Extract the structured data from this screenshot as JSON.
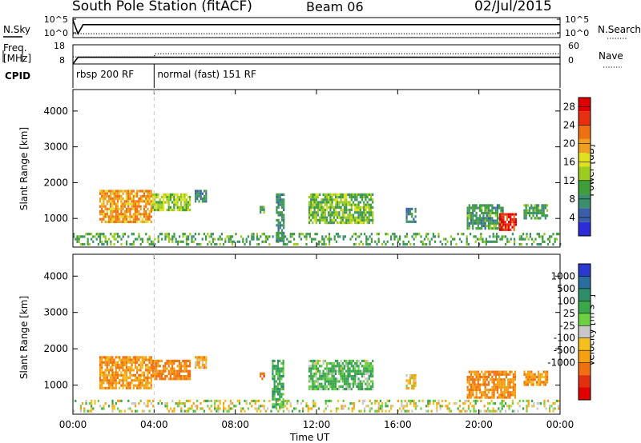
{
  "header": {
    "station": "South Pole Station (fitACF)",
    "beam": "Beam 06",
    "date": "02/Jul/2015"
  },
  "chart_data": [
    {
      "type": "line",
      "panel": "noise",
      "left_label": "N.Sky",
      "right_label": "N.Search",
      "left_ticks": [
        "10^5",
        "10^0"
      ],
      "right_ticks": [
        "10^5",
        "10^0"
      ],
      "series": [
        {
          "name": "N.Sky",
          "style": "solid",
          "x": [
            0.0,
            0.25,
            0.5,
            1,
            2,
            3,
            4,
            5,
            6,
            8,
            10,
            12,
            14,
            16,
            18,
            20,
            22,
            24
          ],
          "y": [
            100000,
            3,
            3000,
            3000,
            3000,
            3000,
            3000,
            3000,
            3000,
            3000,
            3000,
            3000,
            3000,
            3000,
            3000,
            3000,
            3000,
            3000
          ]
        },
        {
          "name": "N.Search",
          "style": "dotted",
          "x": [
            0,
            4,
            8,
            12,
            16,
            20,
            24
          ],
          "y": [
            3,
            3,
            3,
            3,
            3,
            3,
            3
          ]
        }
      ],
      "xlim": [
        0,
        24
      ]
    },
    {
      "type": "line",
      "panel": "frequency",
      "left_label": "Freq. [MHz]",
      "right_label": "Nave",
      "left_ticks": [
        "18",
        "8"
      ],
      "right_ticks": [
        "60",
        "0"
      ],
      "series": [
        {
          "name": "Freq",
          "style": "solid",
          "x": [
            0,
            0.25,
            1,
            4,
            8,
            12,
            16,
            20,
            24
          ],
          "y": [
            8,
            11.5,
            11.5,
            11.5,
            11.5,
            11.5,
            11.5,
            11.5,
            11.5
          ]
        },
        {
          "name": "Nave",
          "style": "dotted",
          "x": [
            0,
            4,
            4.05,
            8,
            12,
            16,
            20,
            24
          ],
          "y": [
            22,
            22,
            32,
            32,
            32,
            32,
            32,
            32
          ]
        }
      ],
      "ylim_left": [
        8,
        18
      ],
      "ylim_right": [
        0,
        60
      ],
      "xlim": [
        0,
        24
      ]
    },
    {
      "type": "table",
      "panel": "cpid",
      "label": "CPID",
      "segments": [
        {
          "start": 0,
          "end": 4,
          "text": "rbsp 200 RF"
        },
        {
          "start": 4,
          "end": 24,
          "text": "normal (fast) 151 RF"
        }
      ]
    },
    {
      "type": "heatmap",
      "panel": "power",
      "ylabel": "Slant Range [km]",
      "yticks": [
        1000,
        2000,
        3000,
        4000
      ],
      "ylim": [
        200,
        4600
      ],
      "xlim": [
        0,
        24
      ],
      "colorbar": {
        "label": "Power [dB]",
        "ticks": [
          "4",
          "8",
          "12",
          "16",
          "20",
          "24",
          "28"
        ],
        "colors": [
          "#2c2cd8",
          "#3a5fa8",
          "#3c8f6e",
          "#3f9e3a",
          "#9ccc1e",
          "#e0e020",
          "#f0a020",
          "#f07010",
          "#e83010",
          "#e00000"
        ],
        "range": [
          0,
          30
        ]
      },
      "gaps_in_colorbar": false,
      "patches": [
        {
          "t0": 1.3,
          "t1": 3.9,
          "r0": 900,
          "r1": 1800,
          "value": 20
        },
        {
          "t0": 3.9,
          "t1": 5.8,
          "r0": 1200,
          "r1": 1700,
          "value": 14
        },
        {
          "t0": 6.0,
          "t1": 6.6,
          "r0": 1500,
          "r1": 1800,
          "value": 8
        },
        {
          "t0": 9.2,
          "t1": 9.4,
          "r0": 1150,
          "r1": 1350,
          "value": 10
        },
        {
          "t0": 11.6,
          "t1": 14.8,
          "r0": 900,
          "r1": 1700,
          "value": 12
        },
        {
          "t0": 16.4,
          "t1": 16.9,
          "r0": 900,
          "r1": 1300,
          "value": 6
        },
        {
          "t0": 19.4,
          "t1": 21.2,
          "r0": 700,
          "r1": 1400,
          "value": 9
        },
        {
          "t0": 21.0,
          "t1": 21.8,
          "r0": 650,
          "r1": 1150,
          "value": 26
        },
        {
          "t0": 22.2,
          "t1": 23.4,
          "r0": 1000,
          "r1": 1400,
          "value": 10
        },
        {
          "t0": 0.0,
          "t1": 24.0,
          "r0": 300,
          "r1": 600,
          "value": 10
        },
        {
          "t0": 10.0,
          "t1": 10.4,
          "r0": 400,
          "r1": 1700,
          "value": 8
        }
      ]
    },
    {
      "type": "heatmap",
      "panel": "velocity",
      "ylabel": "Slant Range [km]",
      "xlabel": "Time UT",
      "xticks": [
        "00:00",
        "04:00",
        "08:00",
        "12:00",
        "16:00",
        "20:00",
        "00:00"
      ],
      "yticks": [
        1000,
        2000,
        3000,
        4000
      ],
      "ylim": [
        200,
        4600
      ],
      "xlim": [
        0,
        24
      ],
      "colorbar": {
        "label": "Velocity [m s^-1]",
        "ticks": [
          "1000",
          "500",
          "100",
          "25",
          "-25",
          "-100",
          "-500",
          "-1000"
        ],
        "colors": [
          "#2a3ad0",
          "#2c6da0",
          "#2e8e6a",
          "#3aa84a",
          "#6cd040",
          "#c8c8c8",
          "#f4c020",
          "#f5a010",
          "#f07010",
          "#e03010",
          "#e00000"
        ]
      },
      "patches": [
        {
          "t0": 1.3,
          "t1": 3.9,
          "r0": 900,
          "r1": 1800,
          "value": -200
        },
        {
          "t0": 3.9,
          "t1": 5.8,
          "r0": 1200,
          "r1": 1700,
          "value": -300
        },
        {
          "t0": 6.0,
          "t1": 6.6,
          "r0": 1500,
          "r1": 1800,
          "value": -150
        },
        {
          "t0": 9.2,
          "t1": 9.4,
          "r0": 1150,
          "r1": 1350,
          "value": -400
        },
        {
          "t0": 11.6,
          "t1": 14.8,
          "r0": 900,
          "r1": 1700,
          "value": 120
        },
        {
          "t0": 16.4,
          "t1": 16.9,
          "r0": 900,
          "r1": 1300,
          "value": -100
        },
        {
          "t0": 19.4,
          "t1": 21.8,
          "r0": 650,
          "r1": 1400,
          "value": -250
        },
        {
          "t0": 22.2,
          "t1": 23.4,
          "r0": 1000,
          "r1": 1400,
          "value": -200
        },
        {
          "t0": 0.0,
          "t1": 24.0,
          "r0": 300,
          "r1": 600,
          "value": 0
        },
        {
          "t0": 9.8,
          "t1": 10.4,
          "r0": 400,
          "r1": 1700,
          "value": 200
        }
      ]
    }
  ]
}
